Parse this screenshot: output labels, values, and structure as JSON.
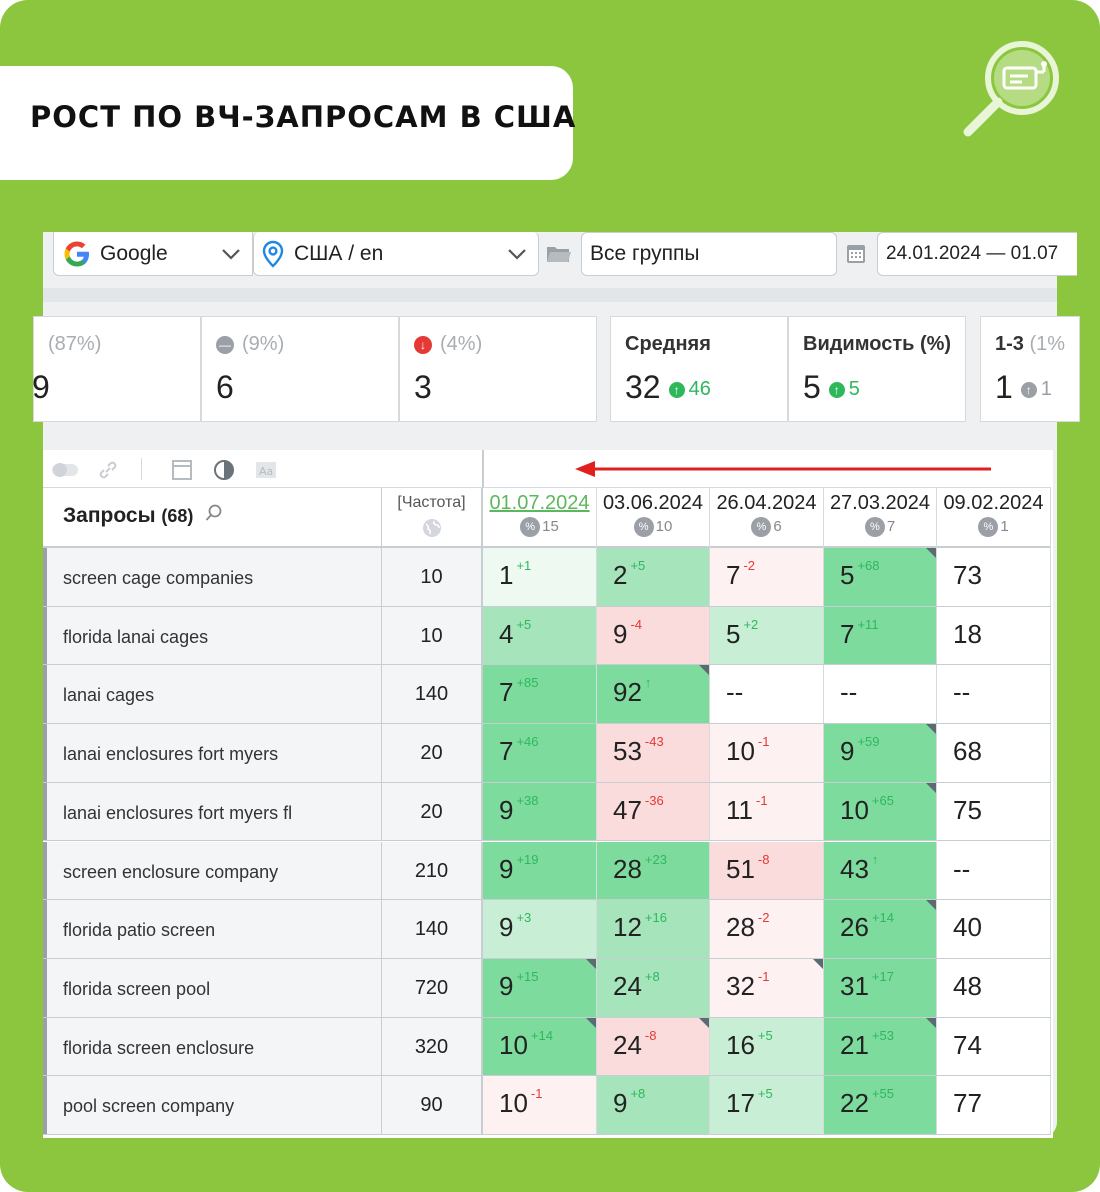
{
  "title": "РОСТ ПО ВЧ-ЗАПРОСАМ В США",
  "toolbar": {
    "engine": "Google",
    "region": "США / en",
    "groups": "Все группы",
    "date_range": "24.01.2024 — 01.07"
  },
  "stats": [
    {
      "label": "(87%)",
      "value": "9",
      "icon": "up-icon"
    },
    {
      "label": "(9%)",
      "value": "6",
      "icon": "equal-icon"
    },
    {
      "label": "(4%)",
      "value": "3",
      "icon": "down-icon"
    },
    {
      "label": "Средняя",
      "value": "32",
      "delta": "46"
    },
    {
      "label": "Видимость (%)",
      "value": "5",
      "delta": "5"
    },
    {
      "label": "1-3",
      "label_extra": "(1%",
      "value": "1",
      "delta": "1"
    }
  ],
  "table": {
    "query_header": "Запросы",
    "query_count": "(68)",
    "freq_header": "[Частота]",
    "dates": [
      {
        "date": "01.07.2024",
        "pct": "15"
      },
      {
        "date": "03.06.2024",
        "pct": "10"
      },
      {
        "date": "26.04.2024",
        "pct": "6"
      },
      {
        "date": "27.03.2024",
        "pct": "7"
      },
      {
        "date": "09.02.2024",
        "pct": "1"
      }
    ],
    "rows": [
      {
        "query": "screen cage companies",
        "freq": "10",
        "cells": [
          [
            "1",
            "+1"
          ],
          [
            "2",
            "+5"
          ],
          [
            "7",
            "-2"
          ],
          [
            "5",
            "+68"
          ],
          [
            "73",
            ""
          ]
        ]
      },
      {
        "query": "florida lanai cages",
        "freq": "10",
        "cells": [
          [
            "4",
            "+5"
          ],
          [
            "9",
            "-4"
          ],
          [
            "5",
            "+2"
          ],
          [
            "7",
            "+11"
          ],
          [
            "18",
            ""
          ]
        ]
      },
      {
        "query": "lanai cages",
        "freq": "140",
        "cells": [
          [
            "7",
            "+85"
          ],
          [
            "92",
            "↑"
          ],
          [
            "--",
            ""
          ],
          [
            "--",
            ""
          ],
          [
            "--",
            ""
          ]
        ]
      },
      {
        "query": "lanai enclosures fort myers",
        "freq": "20",
        "cells": [
          [
            "7",
            "+46"
          ],
          [
            "53",
            "-43"
          ],
          [
            "10",
            "-1"
          ],
          [
            "9",
            "+59"
          ],
          [
            "68",
            ""
          ]
        ]
      },
      {
        "query": "lanai enclosures fort myers fl",
        "freq": "20",
        "cells": [
          [
            "9",
            "+38"
          ],
          [
            "47",
            "-36"
          ],
          [
            "11",
            "-1"
          ],
          [
            "10",
            "+65"
          ],
          [
            "75",
            ""
          ]
        ]
      },
      {
        "query": "screen enclosure company",
        "freq": "210",
        "cells": [
          [
            "9",
            "+19"
          ],
          [
            "28",
            "+23"
          ],
          [
            "51",
            "-8"
          ],
          [
            "43",
            "↑"
          ],
          [
            "--",
            ""
          ]
        ]
      },
      {
        "query": "florida patio screen",
        "freq": "140",
        "cells": [
          [
            "9",
            "+3"
          ],
          [
            "12",
            "+16"
          ],
          [
            "28",
            "-2"
          ],
          [
            "26",
            "+14"
          ],
          [
            "40",
            ""
          ]
        ]
      },
      {
        "query": "florida screen pool",
        "freq": "720",
        "cells": [
          [
            "9",
            "+15"
          ],
          [
            "24",
            "+8"
          ],
          [
            "32",
            "-1"
          ],
          [
            "31",
            "+17"
          ],
          [
            "48",
            ""
          ]
        ]
      },
      {
        "query": "florida screen enclosure",
        "freq": "320",
        "cells": [
          [
            "10",
            "+14"
          ],
          [
            "24",
            "-8"
          ],
          [
            "16",
            "+5"
          ],
          [
            "21",
            "+53"
          ],
          [
            "74",
            ""
          ]
        ]
      },
      {
        "query": "pool screen company",
        "freq": "90",
        "cells": [
          [
            "10",
            "-1"
          ],
          [
            "9",
            "+8"
          ],
          [
            "17",
            "+5"
          ],
          [
            "22",
            "+55"
          ],
          [
            "77",
            ""
          ]
        ]
      }
    ]
  },
  "colors": {
    "brand_green": "#8cc63f",
    "up": "#2eb85c",
    "down": "#e53935",
    "arrow": "#e0201f"
  }
}
